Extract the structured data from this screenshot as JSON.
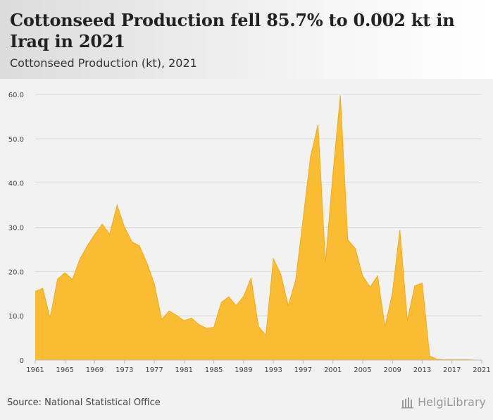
{
  "header": {
    "title": "Cottonseed Production fell 85.7% to 0.002 kt in Iraq in 2021",
    "subtitle": "Cottonseed Production (kt), 2021"
  },
  "footer": {
    "source": "Source: National Statistical Office",
    "brand": "HelgiLibrary"
  },
  "colors": {
    "area_fill": "#f9bc32",
    "area_stroke": "#f0ad1c",
    "grid": "#d9d9d9",
    "axis_text": "#444444"
  },
  "chart_data": {
    "type": "area",
    "title": "Cottonseed Production fell 85.7% to 0.002 kt in Iraq in 2021",
    "subtitle": "Cottonseed Production (kt), 2021",
    "xlabel": "",
    "ylabel": "",
    "ylim": [
      0,
      60
    ],
    "yticks": [
      "0",
      "10.0",
      "20.0",
      "30.0",
      "40.0",
      "50.0",
      "60.0"
    ],
    "xticks": [
      "1961",
      "1965",
      "1969",
      "1973",
      "1977",
      "1981",
      "1985",
      "1989",
      "1993",
      "1997",
      "2001",
      "2005",
      "2009",
      "2013",
      "2017",
      "2021"
    ],
    "grid": true,
    "legend": "none",
    "x": [
      1961,
      1962,
      1963,
      1964,
      1965,
      1966,
      1967,
      1968,
      1969,
      1970,
      1971,
      1972,
      1973,
      1974,
      1975,
      1976,
      1977,
      1978,
      1979,
      1980,
      1981,
      1982,
      1983,
      1984,
      1985,
      1986,
      1987,
      1988,
      1989,
      1990,
      1991,
      1992,
      1993,
      1994,
      1995,
      1996,
      1997,
      1998,
      1999,
      2000,
      2001,
      2002,
      2003,
      2004,
      2005,
      2006,
      2007,
      2008,
      2009,
      2010,
      2011,
      2012,
      2013,
      2014,
      2015,
      2016,
      2017,
      2018,
      2019,
      2020,
      2021
    ],
    "series": [
      {
        "values": [
          15.5,
          16.2,
          9.5,
          18.3,
          19.7,
          18.2,
          22.8,
          25.8,
          28.4,
          30.7,
          28.4,
          35.0,
          30.0,
          26.7,
          25.8,
          22.0,
          17.2,
          9.2,
          11.1,
          10.1,
          8.9,
          9.5,
          8.0,
          7.2,
          7.4,
          13.0,
          14.3,
          12.3,
          14.4,
          18.5,
          7.6,
          5.6,
          22.9,
          19.4,
          12.3,
          18.1,
          32.0,
          46.0,
          53.2,
          22.0,
          42.0,
          59.8,
          27.2,
          25.2,
          19.0,
          16.5,
          19.0,
          7.5,
          15.2,
          29.4,
          9.0,
          16.8,
          17.4,
          0.9,
          0.2,
          0.1,
          0.1,
          0.1,
          0.1,
          0.014,
          0.002
        ]
      }
    ]
  }
}
